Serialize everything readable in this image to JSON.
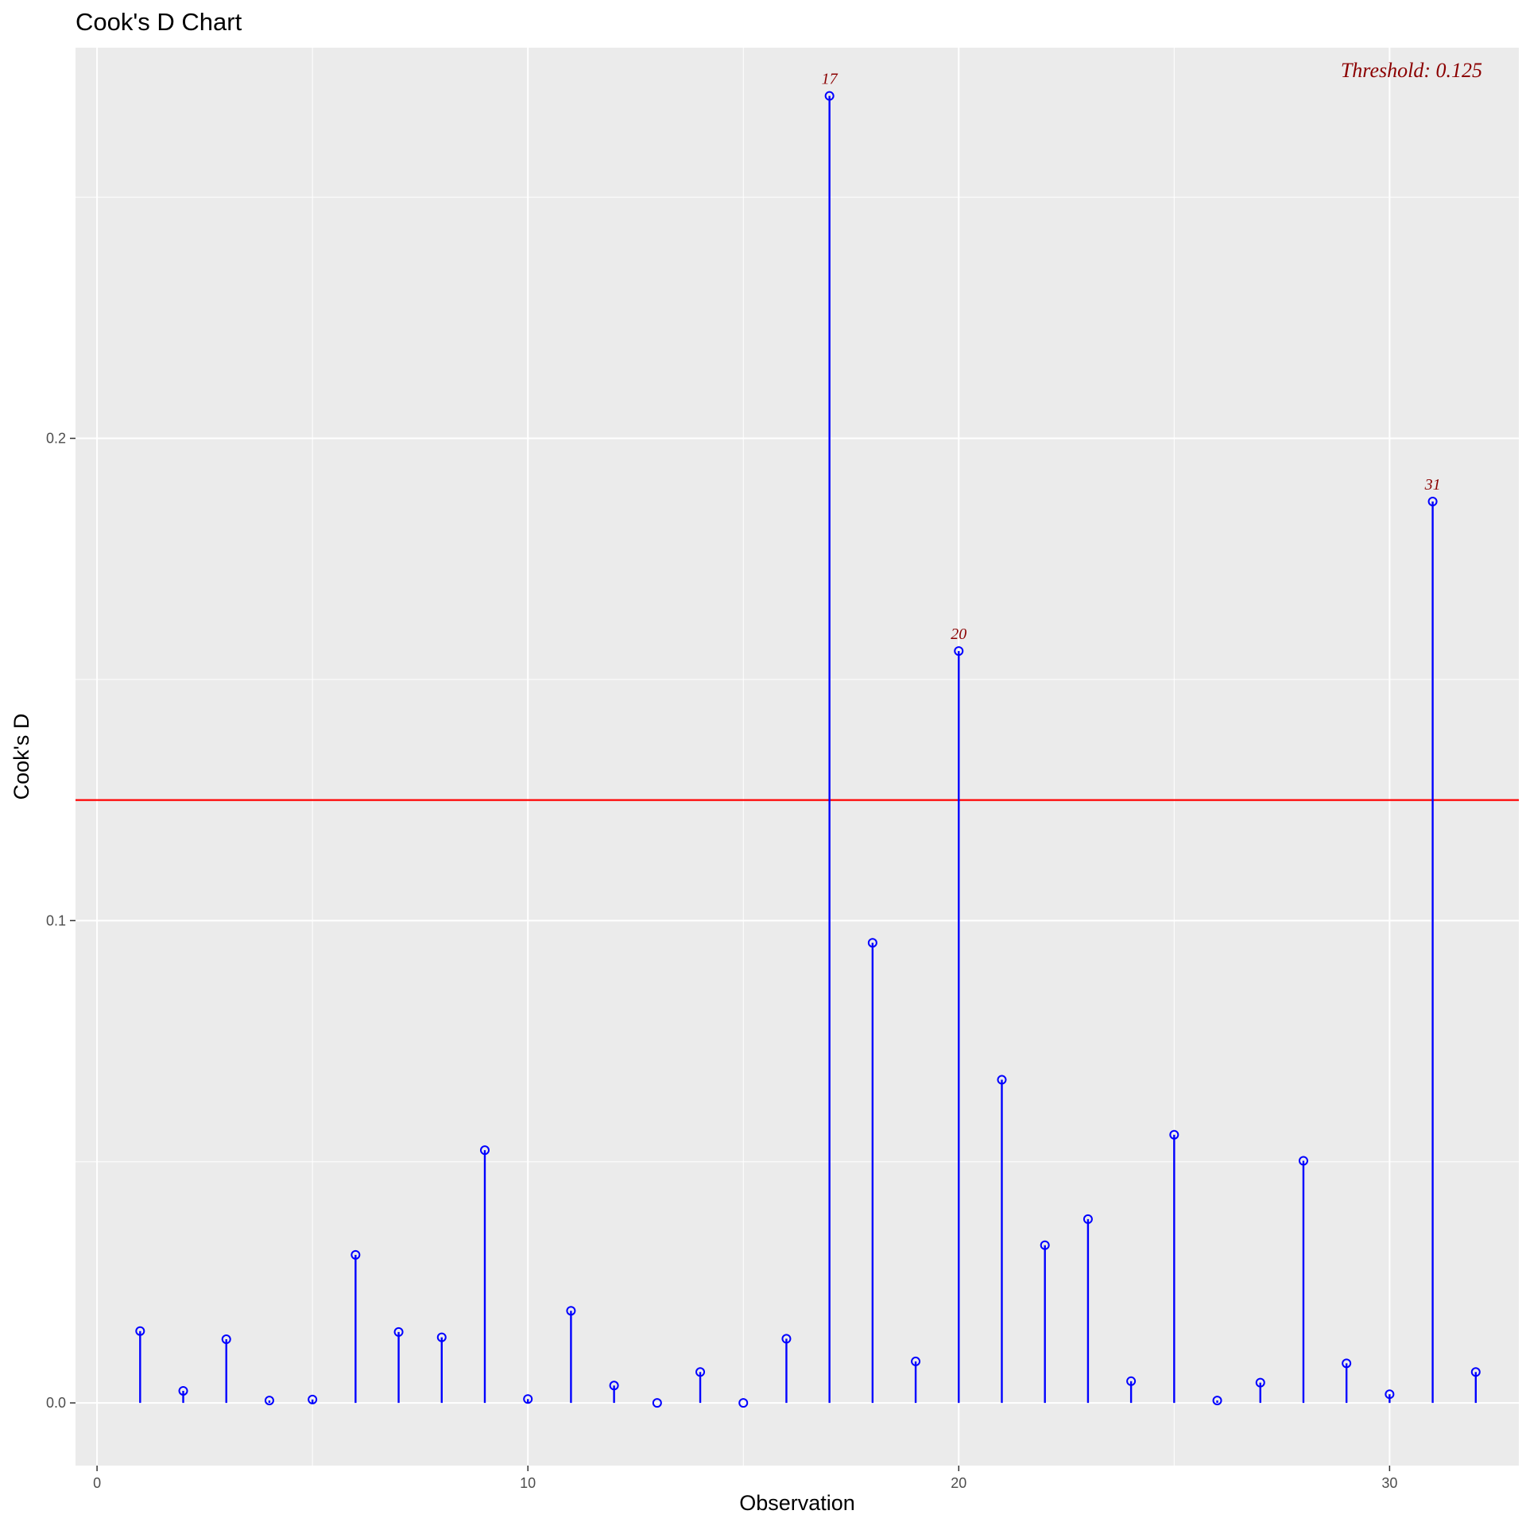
{
  "chart_data": {
    "type": "lollipop",
    "title": "Cook's D Chart",
    "xlabel": "Observation",
    "ylabel": "Cook's D",
    "xlim": [
      -0.5,
      33.0
    ],
    "ylim": [
      -0.013,
      0.281
    ],
    "x_ticks": [
      0,
      10,
      20,
      30
    ],
    "x_minor_ticks": [
      5,
      15,
      25
    ],
    "y_ticks": [
      0.0,
      0.1,
      0.2
    ],
    "y_tick_labels": [
      "0.0",
      "0.1",
      "0.2"
    ],
    "y_minor_ticks": [
      0.05,
      0.15,
      0.25
    ],
    "grid": true,
    "threshold": {
      "value": 0.125,
      "label": "Threshold: 0.125",
      "color": "#ff0000"
    },
    "x": [
      1,
      2,
      3,
      4,
      5,
      6,
      7,
      8,
      9,
      10,
      11,
      12,
      13,
      14,
      15,
      16,
      17,
      18,
      19,
      20,
      21,
      22,
      23,
      24,
      25,
      26,
      27,
      28,
      29,
      30,
      31,
      32
    ],
    "values": [
      0.0149,
      0.0025,
      0.0132,
      0.0005,
      0.0007,
      0.0307,
      0.0147,
      0.0136,
      0.0524,
      0.0008,
      0.0191,
      0.0036,
      0.0,
      0.0064,
      0.0,
      0.0133,
      0.271,
      0.0954,
      0.0086,
      0.1559,
      0.067,
      0.0327,
      0.0381,
      0.0045,
      0.0556,
      0.0005,
      0.0042,
      0.0502,
      0.0082,
      0.0018,
      0.1869,
      0.0064
    ],
    "outliers": [
      {
        "x": 17,
        "label": "17"
      },
      {
        "x": 20,
        "label": "20"
      },
      {
        "x": 31,
        "label": "31"
      }
    ],
    "colors": {
      "stem": "#0000ff",
      "point": "#0000ff",
      "outlier_label": "#8b0000",
      "panel": "#ebebeb",
      "grid": "#ffffff"
    }
  }
}
